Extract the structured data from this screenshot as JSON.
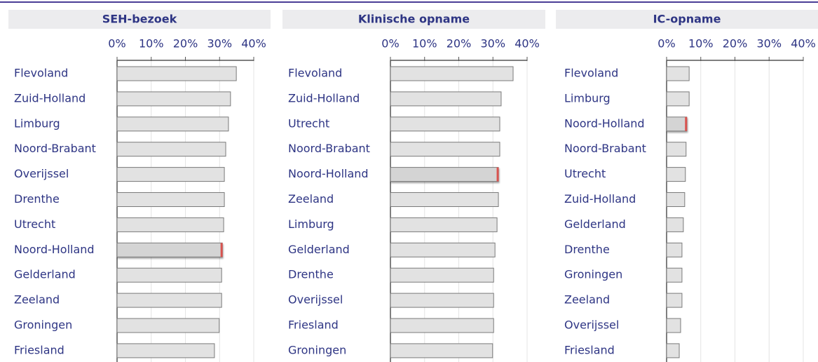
{
  "chart_data": [
    {
      "type": "bar",
      "orientation": "horizontal",
      "title": "SEH-bezoek",
      "categories": [
        "Flevoland",
        "Zuid-Holland",
        "Limburg",
        "Noord-Brabant",
        "Overijssel",
        "Drenthe",
        "Utrecht",
        "Noord-Holland",
        "Gelderland",
        "Zeeland",
        "Groningen",
        "Friesland"
      ],
      "values": [
        34.9,
        33.2,
        32.6,
        31.8,
        31.4,
        31.4,
        31.2,
        30.8,
        30.6,
        30.6,
        29.9,
        28.5
      ],
      "color": "#e2e2e2",
      "highlight": "Noord-Holland",
      "highlight_color": "#d4d4d4",
      "xlim": [
        0,
        40
      ],
      "xticks": [
        {
          "value": 0,
          "label": "0%"
        },
        {
          "value": 10,
          "label": "10%"
        },
        {
          "value": 20,
          "label": "20%"
        },
        {
          "value": 30,
          "label": "30%"
        },
        {
          "value": 40,
          "label": "40%"
        }
      ],
      "grid": true
    },
    {
      "type": "bar",
      "orientation": "horizontal",
      "title": "Klinische opname",
      "categories": [
        "Flevoland",
        "Zuid-Holland",
        "Utrecht",
        "Noord-Brabant",
        "Noord-Holland",
        "Zeeland",
        "Limburg",
        "Gelderland",
        "Drenthe",
        "Overijssel",
        "Friesland",
        "Groningen"
      ],
      "values": [
        35.9,
        32.4,
        32.0,
        32.0,
        31.6,
        31.6,
        31.2,
        30.6,
        30.2,
        30.2,
        30.2,
        29.9
      ],
      "color": "#e2e2e2",
      "highlight": "Noord-Holland",
      "highlight_color": "#d4d4d4",
      "xlim": [
        0,
        40
      ],
      "xticks": [
        {
          "value": 0,
          "label": "0%"
        },
        {
          "value": 10,
          "label": "10%"
        },
        {
          "value": 20,
          "label": "20%"
        },
        {
          "value": 30,
          "label": "30%"
        },
        {
          "value": 40,
          "label": "40%"
        }
      ],
      "grid": true
    },
    {
      "type": "bar",
      "orientation": "horizontal",
      "title": "IC-opname",
      "categories": [
        "Flevoland",
        "Limburg",
        "Noord-Holland",
        "Noord-Brabant",
        "Utrecht",
        "Zuid-Holland",
        "Gelderland",
        "Drenthe",
        "Groningen",
        "Zeeland",
        "Overijssel",
        "Friesland"
      ],
      "values": [
        6.6,
        6.6,
        5.9,
        5.7,
        5.5,
        5.3,
        4.9,
        4.5,
        4.5,
        4.5,
        4.1,
        3.7
      ],
      "color": "#e2e2e2",
      "highlight": "Noord-Holland",
      "highlight_color": "#d4d4d4",
      "xlim": [
        0,
        40
      ],
      "xticks": [
        {
          "value": 0,
          "label": "0%"
        },
        {
          "value": 10,
          "label": "10%"
        },
        {
          "value": 20,
          "label": "20%"
        },
        {
          "value": 30,
          "label": "30%"
        },
        {
          "value": 40,
          "label": "40%"
        }
      ],
      "grid": true
    }
  ]
}
